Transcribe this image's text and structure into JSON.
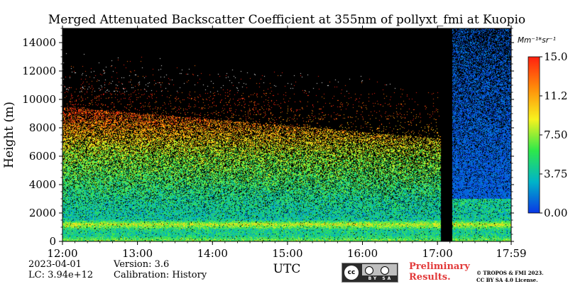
{
  "chart_data": {
    "type": "heatmap",
    "title": "Merged Attenuated Backscatter Coefficient at 355nm of pollyxt_fmi at Kuopio",
    "xlabel": "UTC",
    "ylabel": "Height (m)",
    "x_tick_labels": [
      "12:00",
      "13:00",
      "14:00",
      "15:00",
      "16:00",
      "17:00",
      "17:59"
    ],
    "x_tick_hours": [
      12.0,
      13.0,
      14.0,
      15.0,
      16.0,
      17.0,
      17.983
    ],
    "xlim_hours": [
      12.0,
      17.983
    ],
    "y_ticks": [
      0,
      2000,
      4000,
      6000,
      8000,
      10000,
      12000,
      14000
    ],
    "ylim": [
      0,
      15000
    ],
    "colorbar": {
      "label": "Mm⁻¹*sr⁻¹",
      "range": [
        0.0,
        15.0
      ],
      "ticks": [
        0.0,
        3.75,
        7.5,
        11.25,
        15.0
      ],
      "tick_labels": [
        "0.00",
        "3.75",
        "7.50",
        "11.2",
        "15.0"
      ],
      "colormap": [
        "#0a37e6",
        "#00b4c8",
        "#2ee84a",
        "#f7f21e",
        "#ff8c0a",
        "#ff2010"
      ]
    },
    "no_data_gap_hours": [
      17.05,
      17.2
    ],
    "background_color": "#000000",
    "profile": [
      {
        "height": 100,
        "value": 6.5
      },
      {
        "height": 400,
        "value": 4.5
      },
      {
        "height": 800,
        "value": 4.5
      },
      {
        "height": 1200,
        "value": 8.5
      },
      {
        "height": 1500,
        "value": 4.0
      },
      {
        "height": 2000,
        "value": 4.0
      },
      {
        "height": 3000,
        "value": 4.5
      },
      {
        "height": 4000,
        "value": 5.5
      },
      {
        "height": 5000,
        "value": 6.5
      },
      {
        "height": 6000,
        "value": 7.5
      },
      {
        "height": 7000,
        "value": 9.5
      },
      {
        "height": 8000,
        "value": 11.5
      },
      {
        "height": 9000,
        "value": 13.5
      },
      {
        "height": 10000,
        "value": 14.5
      },
      {
        "height": 11000,
        "value": 15.0
      },
      {
        "height": 15000,
        "value": 15.0
      }
    ]
  },
  "footer": {
    "date": "2023-04-01",
    "lc": "LC: 3.94e+12",
    "version": "Version: 3.6",
    "calibration": "Calibration: History",
    "license_icon_text": "cc",
    "license_bar_text": "BY  SA",
    "preliminary_line1": "Preliminary",
    "preliminary_line2": "Results.",
    "copyright_line1": "© TROPOS & FMI 2023.",
    "copyright_line2": "CC BY SA 4.0 License."
  }
}
